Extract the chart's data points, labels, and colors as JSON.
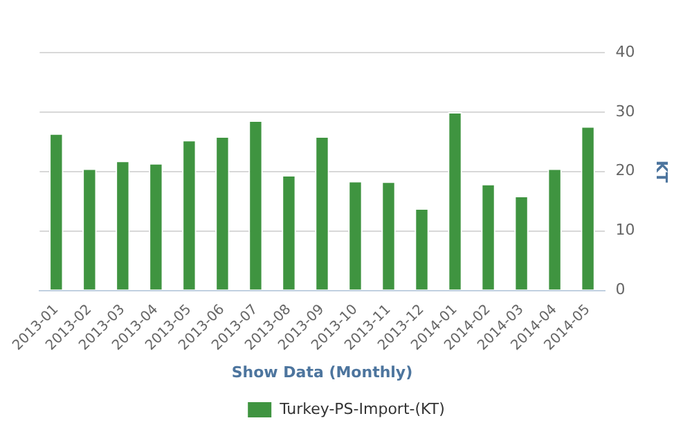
{
  "chart_data": {
    "type": "bar",
    "xlabel": "Show Data (Monthly)",
    "ylabel": "KT",
    "categories": [
      "2013-01",
      "2013-02",
      "2013-03",
      "2013-04",
      "2013-05",
      "2013-06",
      "2013-07",
      "2013-08",
      "2013-09",
      "2013-10",
      "2013-11",
      "2013-12",
      "2014-01",
      "2014-02",
      "2014-03",
      "2014-04",
      "2014-05"
    ],
    "series": [
      {
        "name": "Turkey-PS-Import-(KT)",
        "color": "#3f9440",
        "values": [
          26.4,
          20.5,
          21.8,
          21.4,
          25.3,
          25.9,
          28.6,
          19.4,
          25.9,
          18.4,
          18.3,
          13.8,
          30.0,
          17.9,
          15.9,
          20.5,
          27.6
        ]
      }
    ],
    "ylim": [
      0,
      40
    ],
    "yticks": [
      0,
      10,
      20,
      30,
      40
    ],
    "grid": "y",
    "legend": "bottom"
  }
}
